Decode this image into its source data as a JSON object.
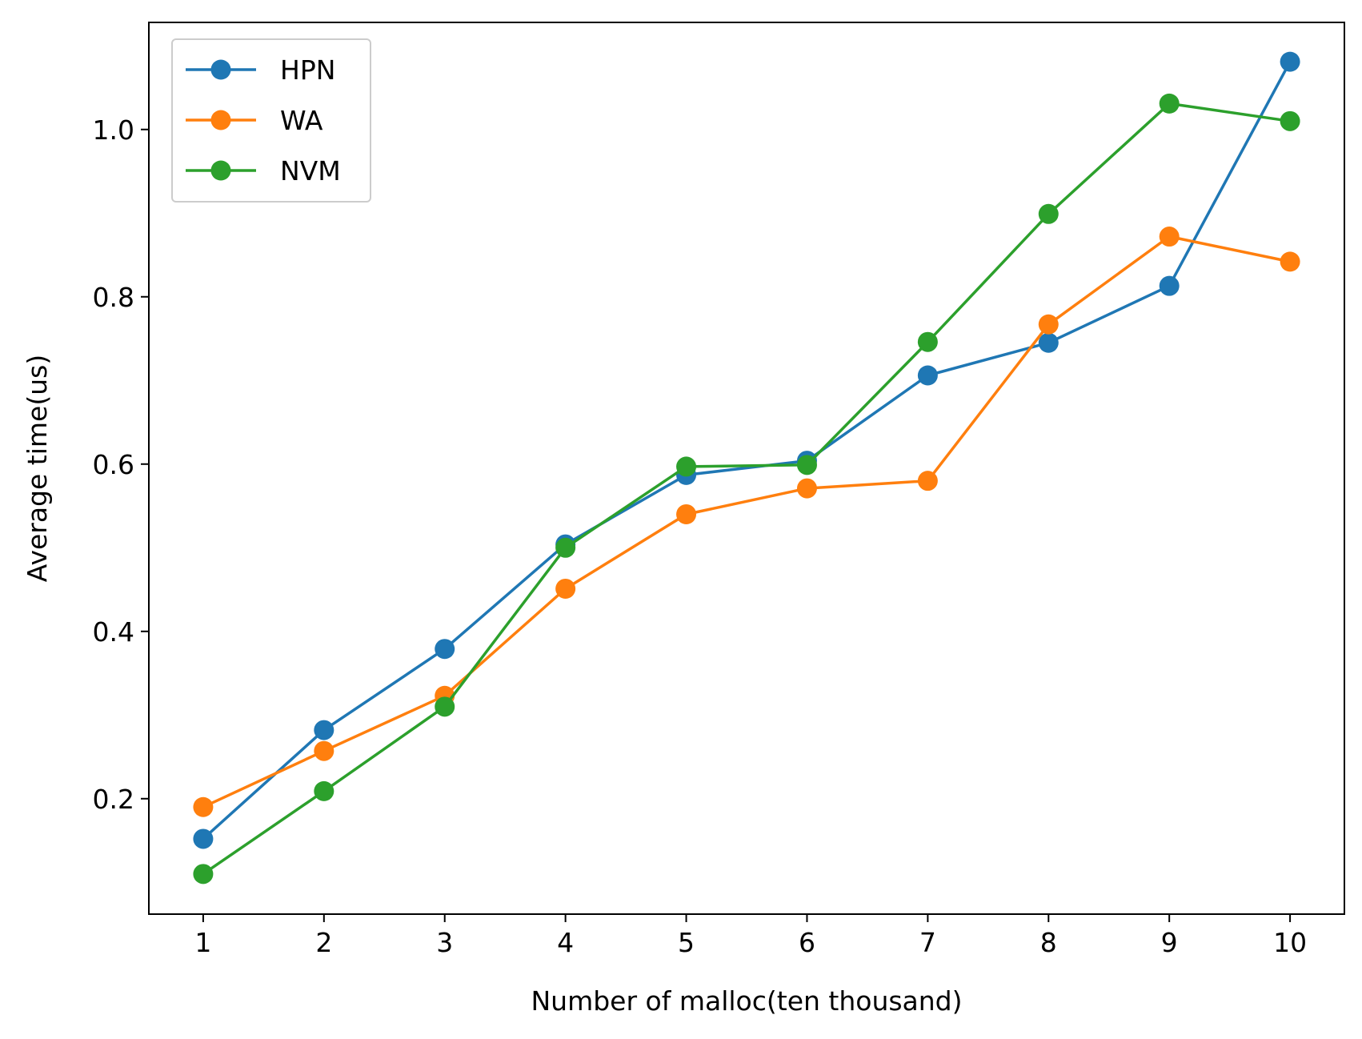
{
  "chart_data": {
    "type": "line",
    "title": "",
    "xlabel": "Number of malloc(ten thousand)",
    "ylabel": "Average time(us)",
    "x": [
      1,
      2,
      3,
      4,
      5,
      6,
      7,
      8,
      9,
      10
    ],
    "x_ticks": [
      "1",
      "2",
      "3",
      "4",
      "5",
      "6",
      "7",
      "8",
      "9",
      "10"
    ],
    "y_ticks": [
      "0.2",
      "0.4",
      "0.6",
      "0.8",
      "1.0"
    ],
    "y_tick_values": [
      0.2,
      0.4,
      0.6,
      0.8,
      1.0
    ],
    "xlim": [
      0.55,
      10.45
    ],
    "ylim": [
      0.062,
      1.128
    ],
    "grid": false,
    "legend": "top-left",
    "marker": "circle",
    "series": [
      {
        "name": "HPN",
        "color": "#1f77b4",
        "values": [
          0.152,
          0.282,
          0.379,
          0.504,
          0.587,
          0.604,
          0.706,
          0.745,
          0.813,
          1.081
        ]
      },
      {
        "name": "WA",
        "color": "#ff7f0e",
        "values": [
          0.19,
          0.257,
          0.323,
          0.451,
          0.54,
          0.571,
          0.58,
          0.767,
          0.872,
          0.842
        ]
      },
      {
        "name": "NVM",
        "color": "#2ca02c",
        "values": [
          0.11,
          0.209,
          0.31,
          0.5,
          0.597,
          0.599,
          0.746,
          0.899,
          1.031,
          1.01
        ]
      }
    ]
  }
}
